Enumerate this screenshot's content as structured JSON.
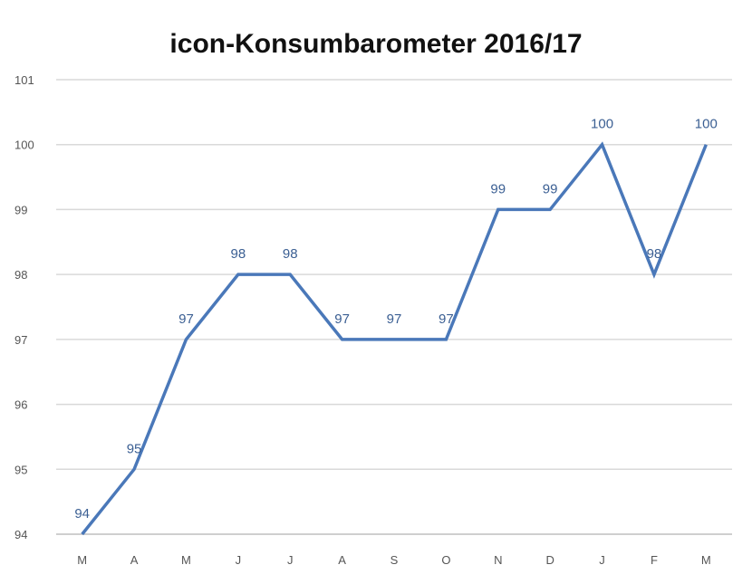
{
  "chart_data": {
    "type": "line",
    "title": "icon-Konsumbarometer 2016/17",
    "xlabel": "",
    "ylabel": "",
    "categories": [
      "M",
      "A",
      "M",
      "J",
      "J",
      "A",
      "S",
      "O",
      "N",
      "D",
      "J",
      "F",
      "M"
    ],
    "series": [
      {
        "values": [
          94,
          95,
          97,
          98,
          98,
          97,
          97,
          97,
          99,
          99,
          100,
          98,
          100
        ],
        "color": "#4a78b9"
      }
    ],
    "ylim": [
      94,
      101
    ],
    "yticks": [
      94,
      95,
      96,
      97,
      98,
      99,
      100,
      101
    ],
    "grid": true,
    "legend": "none",
    "data_labels": true
  }
}
